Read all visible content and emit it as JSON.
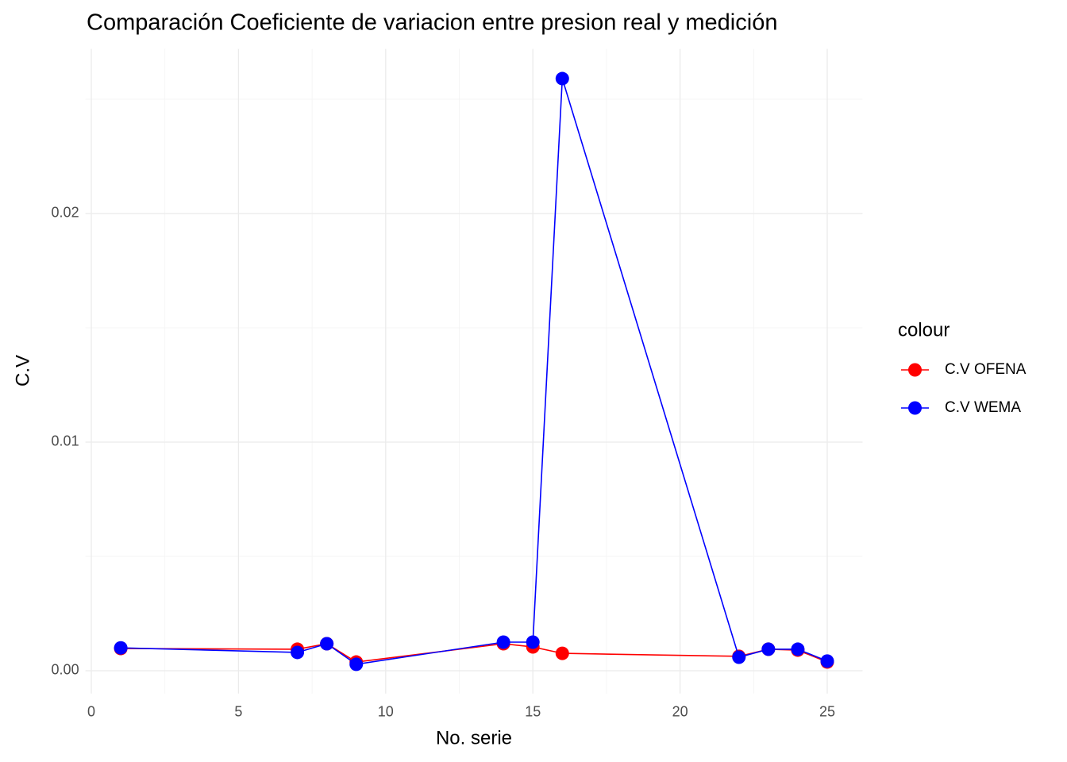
{
  "chart_data": {
    "type": "line",
    "title": "Comparación Coeficiente de variacion entre  presion real y medición",
    "x_label": "No. serie",
    "y_label": "C.V",
    "legend_title": "colour",
    "x": [
      1,
      7,
      8,
      9,
      14,
      15,
      16,
      22,
      23,
      24,
      25
    ],
    "series": [
      {
        "name": "C.V OFENA",
        "color": "#ff0000",
        "values": [
          0.00097,
          0.00094,
          0.00118,
          0.00038,
          0.00118,
          0.00104,
          0.00076,
          0.00063,
          0.00094,
          0.0009,
          0.00038
        ]
      },
      {
        "name": "C.V WEMA",
        "color": "#0000ff",
        "values": [
          0.001,
          0.0008,
          0.00118,
          0.00028,
          0.00125,
          0.00125,
          0.0259,
          0.00059,
          0.00094,
          0.00094,
          0.00042
        ]
      }
    ],
    "xlim": [
      -0.2,
      26.2
    ],
    "ylim": [
      -0.001,
      0.0272
    ],
    "xticks": [
      0,
      5,
      10,
      15,
      20,
      25
    ],
    "yticks": [
      {
        "value": 0,
        "label": "0.00"
      },
      {
        "value": 0.01,
        "label": "0.01"
      },
      {
        "value": 0.02,
        "label": "0.02"
      }
    ],
    "x_minor_ticks": [
      2.5,
      7.5,
      12.5,
      17.5,
      22.5
    ],
    "y_minor_ticks": [
      0.005,
      0.015,
      0.025
    ],
    "grid": true,
    "legend_position": "right"
  }
}
